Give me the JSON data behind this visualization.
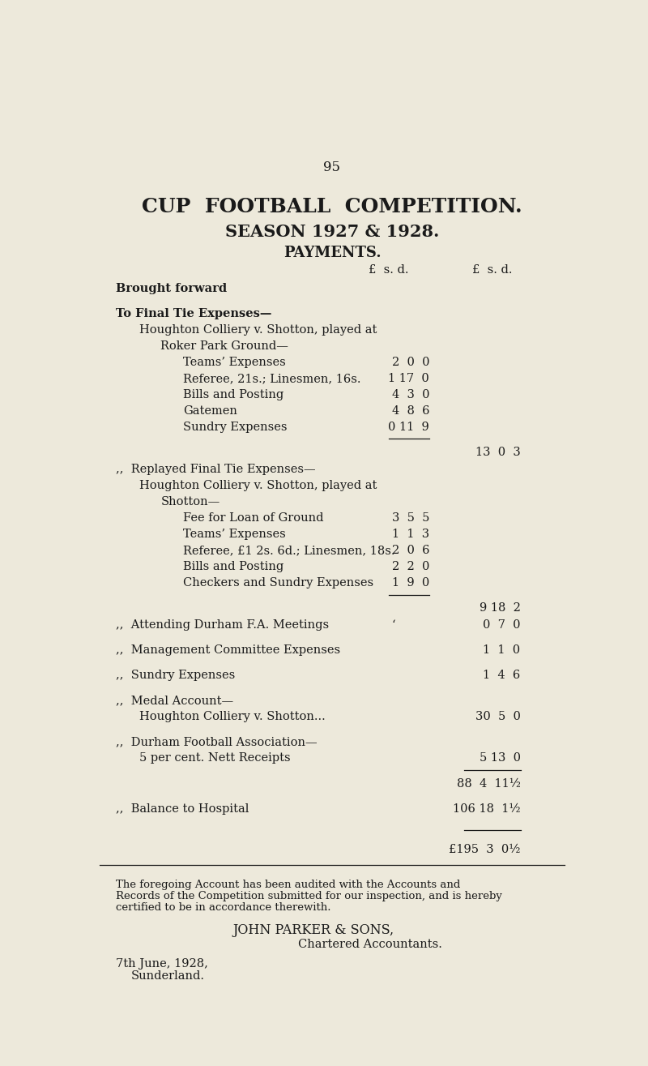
{
  "page_number": "95",
  "title1": "CUP  FOOTBALL  COMPETITION.",
  "title2": "SEASON 1927 & 1928.",
  "title3": "PAYMENTS.",
  "background_color": "#ede9db",
  "text_color": "#1a1a1a",
  "lines": [
    {
      "type": "normal",
      "indent": 0,
      "bold": true,
      "text": "Brought forward",
      "dots": "...   ...   ...   ...   ...",
      "inner": "",
      "outer": ""
    },
    {
      "type": "gap",
      "indent": 0,
      "bold": false,
      "text": "",
      "dots": "",
      "inner": "",
      "outer": ""
    },
    {
      "type": "normal",
      "indent": 0,
      "bold": true,
      "text": "To Final Tie Expenses—",
      "dots": "",
      "inner": "",
      "outer": ""
    },
    {
      "type": "normal",
      "indent": 1,
      "bold": false,
      "text": "Houghton Colliery v. Shotton, played at",
      "dots": "",
      "inner": "",
      "outer": ""
    },
    {
      "type": "normal",
      "indent": 2,
      "bold": false,
      "text": "Roker Park Ground—",
      "dots": "",
      "inner": "",
      "outer": ""
    },
    {
      "type": "normal",
      "indent": 3,
      "bold": false,
      "text": "Teams’ Expenses",
      "dots": "...   ...   ...",
      "inner": "2  0  0",
      "outer": ""
    },
    {
      "type": "normal",
      "indent": 3,
      "bold": false,
      "text": "Referee, 21s.; Linesmen, 16s.",
      "dots": "...",
      "inner": "1 17  0",
      "outer": ""
    },
    {
      "type": "normal",
      "indent": 3,
      "bold": false,
      "text": "Bills and Posting",
      "dots": "...   ...   ...",
      "inner": "4  3  0",
      "outer": ""
    },
    {
      "type": "normal",
      "indent": 3,
      "bold": false,
      "text": "Gatemen",
      "dots": "...   ...   ...   ...",
      "inner": "4  8  6",
      "outer": ""
    },
    {
      "type": "normal",
      "indent": 3,
      "bold": false,
      "text": "Sundry Expenses",
      "dots": "...   ...   ...",
      "inner": "0 11  9",
      "outer": ""
    },
    {
      "type": "inner_line",
      "outer": "13  0  3"
    },
    {
      "type": "gap"
    },
    {
      "type": "normal",
      "indent": 0,
      "bold": false,
      "text": ",,  Replayed Final Tie Expenses—",
      "dots": "",
      "inner": "",
      "outer": ""
    },
    {
      "type": "normal",
      "indent": 1,
      "bold": false,
      "text": "Houghton Colliery v. Shotton, played at",
      "dots": "",
      "inner": "",
      "outer": ""
    },
    {
      "type": "normal",
      "indent": 2,
      "bold": false,
      "text": "Shotton—",
      "dots": "",
      "inner": "",
      "outer": ""
    },
    {
      "type": "normal",
      "indent": 3,
      "bold": false,
      "text": "Fee for Loan of Ground",
      "dots": "...   ...",
      "inner": "3  5  5",
      "outer": ""
    },
    {
      "type": "normal",
      "indent": 3,
      "bold": false,
      "text": "Teams’ Expenses",
      "dots": "...   ...   ...",
      "inner": "1  1  3",
      "outer": ""
    },
    {
      "type": "normal",
      "indent": 3,
      "bold": false,
      "text": "Referee, £1 2s. 6d.; Linesmen, 18s.",
      "dots": "",
      "inner": "2  0  6",
      "outer": ""
    },
    {
      "type": "normal",
      "indent": 3,
      "bold": false,
      "text": "Bills and Posting",
      "dots": "...   ...   ...",
      "inner": "2  2  0",
      "outer": ""
    },
    {
      "type": "normal",
      "indent": 3,
      "bold": false,
      "text": "Checkers and Sundry Expenses",
      "dots": "...",
      "inner": "1  9  0",
      "outer": ""
    },
    {
      "type": "inner_line",
      "outer": "9 18  2"
    },
    {
      "type": "gap"
    },
    {
      "type": "normal",
      "indent": 0,
      "bold": false,
      "text": ",,  Attending Durham F.A. Meetings",
      "dots": "...   ...",
      "inner": "•",
      "outer": "0  7  0"
    },
    {
      "type": "gap"
    },
    {
      "type": "normal",
      "indent": 0,
      "bold": false,
      "text": ",,  Management Committee Expenses",
      "dots": "...   ...",
      "inner": "",
      "outer": "1  1  0"
    },
    {
      "type": "gap"
    },
    {
      "type": "normal",
      "indent": 0,
      "bold": false,
      "text": ",,  Sundry Expenses",
      "dots": "...   ...   ...   ...",
      "inner": "",
      "outer": "1  4  6"
    },
    {
      "type": "gap"
    },
    {
      "type": "normal",
      "indent": 0,
      "bold": false,
      "text": ",,  Medal Account—",
      "dots": "",
      "inner": "",
      "outer": ""
    },
    {
      "type": "normal",
      "indent": 1,
      "bold": false,
      "text": "Houghton Colliery v. Shotton...",
      "dots": "...   ...",
      "inner": "",
      "outer": "30  5  0"
    },
    {
      "type": "gap"
    },
    {
      "type": "normal",
      "indent": 0,
      "bold": false,
      "text": ",,  Durham Football Association—",
      "dots": "",
      "inner": "",
      "outer": ""
    },
    {
      "type": "normal",
      "indent": 1,
      "bold": false,
      "text": "5 per cent. Nett Receipts",
      "dots": "...   ...   ...",
      "inner": "",
      "outer": "5 13  0"
    },
    {
      "type": "outer_line"
    },
    {
      "type": "normal",
      "indent": 0,
      "bold": false,
      "text": "",
      "dots": "",
      "inner": "",
      "outer": "88  4  11½"
    },
    {
      "type": "gap"
    },
    {
      "type": "normal",
      "indent": 0,
      "bold": false,
      "text": ",,  Balance to Hospital",
      "dots": "...   ...   ...   ...",
      "inner": "",
      "outer": "106 18  1½"
    },
    {
      "type": "gap"
    },
    {
      "type": "outer_line2"
    },
    {
      "type": "gap"
    },
    {
      "type": "normal",
      "indent": 0,
      "bold": false,
      "text": "",
      "dots": "",
      "inner": "",
      "outer": "£195  3  0½"
    }
  ],
  "audit_text1": "The foregoing Account has been audited with the Accounts and",
  "audit_text2": "Records of the Competition submitted for our inspection, and is hereby",
  "audit_text3": "certified to be in accordance therewith.",
  "firm": "JOHN PARKER & SONS,",
  "role": "Chartered Accountants.",
  "date": "7th June, 1928,",
  "place": "Sunderland."
}
